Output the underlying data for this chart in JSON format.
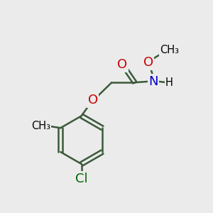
{
  "bg_color": "#ebebeb",
  "bond_color": "#3a5a3a",
  "bond_width": 1.8,
  "atom_colors": {
    "O": "#cc0000",
    "N": "#0000cc",
    "Cl": "#006600",
    "C": "#000000",
    "H": "#000000"
  },
  "font_size_main": 13,
  "font_size_sub": 10.5
}
